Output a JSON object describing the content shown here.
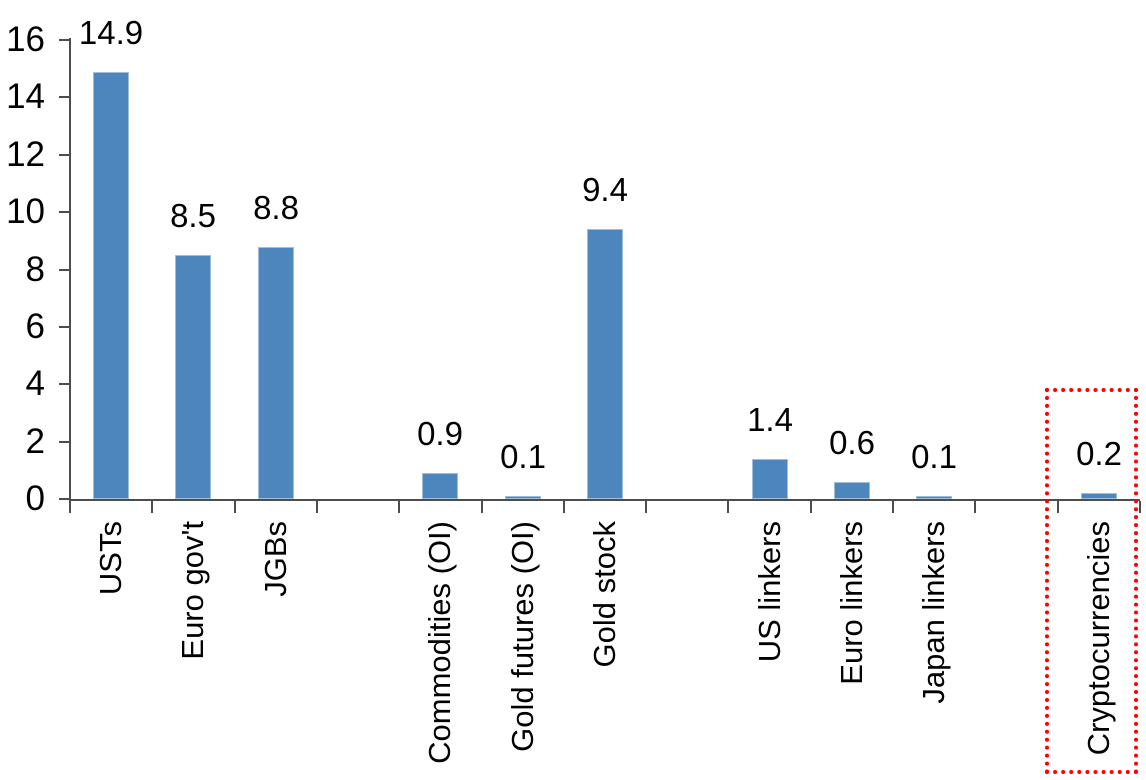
{
  "chart_data": {
    "type": "bar",
    "title": "",
    "xlabel": "",
    "ylabel": "",
    "categories": [
      "USTs",
      "Euro gov't",
      "JGBs",
      "Commodities (OI)",
      "Gold futures (OI)",
      "Gold stock",
      "US linkers",
      "Euro linkers",
      "Japan linkers",
      "Cryptocurrencies"
    ],
    "values": [
      14.9,
      8.5,
      8.8,
      0.9,
      0.1,
      9.4,
      1.4,
      0.6,
      0.1,
      0.2
    ],
    "data_labels": [
      "14.9",
      "8.5",
      "8.8",
      "0.9",
      "0.1",
      "9.4",
      "1.4",
      "0.6",
      "0.1",
      "0.2"
    ],
    "slots": [
      0,
      1,
      2,
      4,
      5,
      6,
      8,
      9,
      10,
      12
    ],
    "slot_count": 13,
    "y_axis": {
      "min": 0,
      "max": 16,
      "step": 2,
      "tick_labels": [
        "0",
        "2",
        "4",
        "6",
        "8",
        "10",
        "12",
        "14",
        "16"
      ]
    },
    "grid": false,
    "legend": false,
    "background_color": "#FFFFFF",
    "bar_color": "#4D86BD",
    "bar_border_color": "#9FBEDC",
    "axis_color": "#4D4D4D",
    "text_color": "#000000",
    "highlight": {
      "target": "Cryptocurrencies",
      "shape": "dotted-rectangle",
      "color": "#FF0000"
    }
  }
}
